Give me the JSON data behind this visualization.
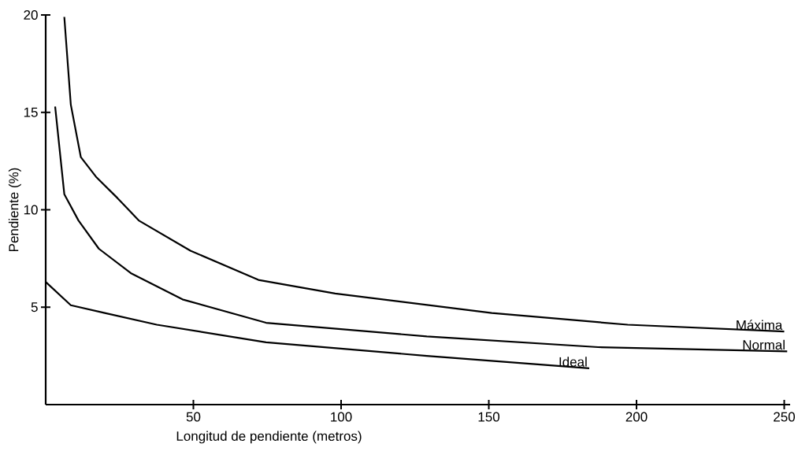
{
  "chart_data": {
    "type": "line",
    "xlabel": "Longitud de pendiente (metros)",
    "ylabel": "Pendiente (%)",
    "xlim": [
      0,
      252
    ],
    "xticks": [
      50,
      100,
      150,
      200,
      250
    ],
    "ylim": [
      0,
      20
    ],
    "yticks": [
      5,
      10,
      15,
      20
    ],
    "grid": false,
    "legend": false,
    "marker": "none",
    "line_style": "solid",
    "series": [
      {
        "name": "Máxima",
        "color": "#000000",
        "x": [
          6.3,
          8.5,
          11.9,
          17,
          24.3,
          31.5,
          49,
          72,
          98,
          151,
          197,
          250
        ],
        "values": [
          19.9,
          15.4,
          12.7,
          11.7,
          10.6,
          9.45,
          7.9,
          6.4,
          5.7,
          4.7,
          4.1,
          3.75
        ]
      },
      {
        "name": "Normal",
        "color": "#000000",
        "x": [
          3.2,
          6.3,
          11.1,
          18,
          28.8,
          46.3,
          74.6,
          129,
          187,
          251
        ],
        "values": [
          15.3,
          10.8,
          9.45,
          8.0,
          6.75,
          5.4,
          4.2,
          3.5,
          2.95,
          2.73
        ]
      },
      {
        "name": "Ideal",
        "color": "#000000",
        "x": [
          0,
          8.5,
          20,
          37.6,
          74.6,
          129,
          184
        ],
        "values": [
          6.3,
          5.1,
          4.7,
          4.1,
          3.2,
          2.5,
          1.86
        ]
      }
    ]
  }
}
